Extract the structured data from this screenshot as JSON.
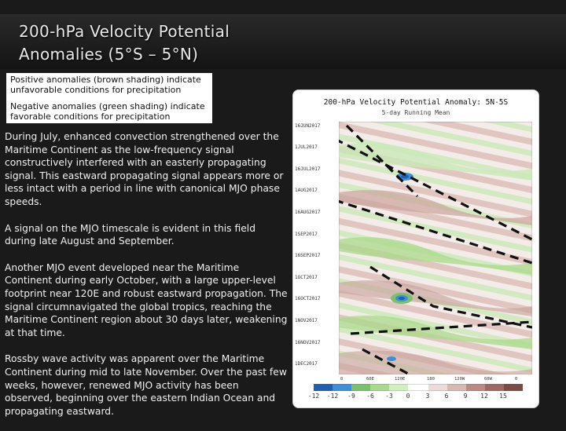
{
  "slide": {
    "title_line1": "200-hPa Velocity Potential",
    "title_line2": "Anomalies (5°S – 5°N)",
    "legend_positive": "Positive anomalies (brown shading) indicate unfavorable conditions for precipitation",
    "legend_negative": "Negative anomalies (green shading) indicate favorable conditions for precipitation",
    "paragraphs": [
      "During July, enhanced convection strengthened over the Maritime Continent as the low-frequency signal constructively interfered with an easterly propagating signal. This eastward propagating signal appears more or less intact with a period in line with canonical MJO phase speeds.",
      "A signal on the MJO timescale is evident in this field during late August and September.",
      "Another MJO event developed near the Maritime Continent during early October, with a large upper-level footprint near 120E and robust eastward propagation. The signal circumnavigated the global tropics, reaching the Maritime Continent region about 30 days later, weakening at that time.",
      "Rossby wave activity was apparent over the Maritime Continent during mid to late November. Over the past few weeks, however, renewed MJO activity has been observed, beginning over the eastern Indian Ocean and propagating eastward."
    ]
  },
  "figure": {
    "title": "200-hPa Velocity Potential Anomaly: 5N-5S",
    "subtitle": "5-day Running Mean",
    "date_labels": [
      "16JUN2017",
      "1JUL2017",
      "16JUL2017",
      "1AUG2017",
      "16AUG2017",
      "1SEP2017",
      "16SEP2017",
      "1OCT2017",
      "16OCT2017",
      "1NOV2017",
      "16NOV2017",
      "1DEC2017"
    ],
    "lon_labels": [
      "0",
      "60E",
      "120E",
      "180",
      "120W",
      "60W",
      "0"
    ],
    "colorbar_labels": [
      "-12",
      "-12",
      "-9",
      "-6",
      "-3",
      "0",
      "3",
      "6",
      "9",
      "12",
      "15"
    ],
    "colors": {
      "negative": [
        "#1f5fb0",
        "#3f8fd8",
        "#7ec06a",
        "#a9d98a",
        "#d3efc0"
      ],
      "positive": [
        "#eedbd8",
        "#d9b8b2",
        "#b98b84",
        "#9c6a63",
        "#7a4a44"
      ]
    }
  }
}
